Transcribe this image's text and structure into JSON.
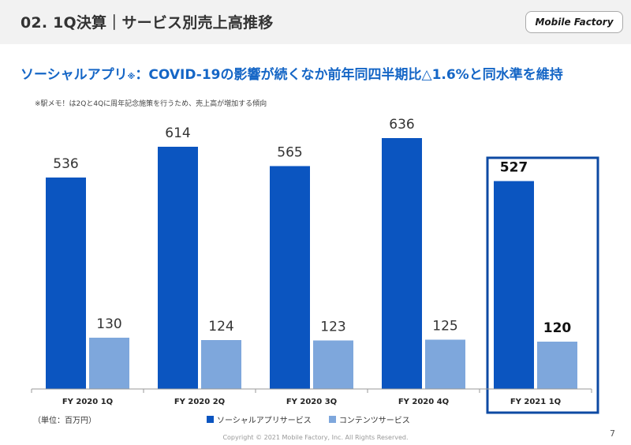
{
  "header": {
    "title": "02. 1Q決算｜サービス別売上高推移",
    "logo_text": "Mobile Factory"
  },
  "headline": {
    "text": "ソーシャルアプリ",
    "note_mark": "※",
    "text_rest": "：COVID-19の影響が続くなか前年同四半期比△1.6%と同水準を維持"
  },
  "note": "※駅メモ！は2Qと4Qに周年記念施策を行うため、売上高が増加する傾向",
  "unit_label": "（単位：百万円）",
  "chart_data": {
    "type": "bar",
    "categories": [
      "FY 2020 1Q",
      "FY 2020 2Q",
      "FY 2020 3Q",
      "FY 2020 4Q",
      "FY 2021 1Q"
    ],
    "series": [
      {
        "name": "ソーシャルアプリサービス",
        "values": [
          536,
          614,
          565,
          636,
          527
        ],
        "color": "#0b55c0"
      },
      {
        "name": "コンテンツサービス",
        "values": [
          130,
          124,
          123,
          125,
          120
        ],
        "color": "#7ea7dc"
      }
    ],
    "highlight_category": "FY 2021 1Q",
    "highlight_color": "#0d4aa3",
    "ylim": [
      0,
      700
    ],
    "grid": false,
    "legend_position": "bottom"
  },
  "footer": {
    "copyright": "Copyright © 2021 Mobile Factory, Inc. All Rights Reserved.",
    "page_number": "7"
  }
}
